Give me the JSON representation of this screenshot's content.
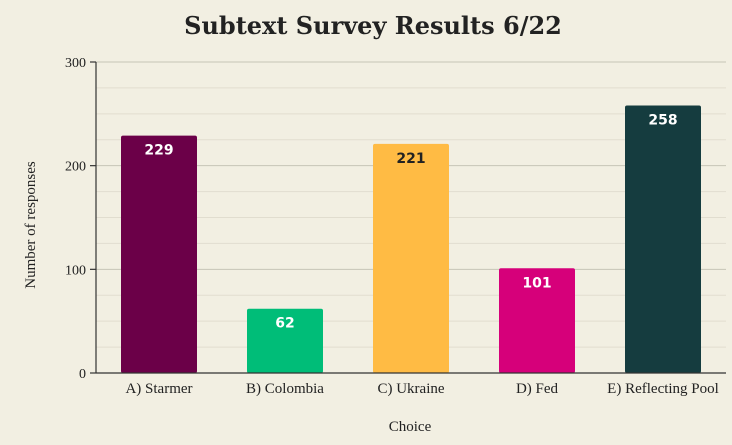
{
  "chart_data": {
    "type": "bar",
    "title": "Subtext Survey Results 6/22",
    "xlabel": "Choice",
    "ylabel": "Number of responses",
    "categories": [
      "A) Starmer",
      "B) Colombia",
      "C) Ukraine",
      "D) Fed",
      "E) Reflecting Pool"
    ],
    "values": [
      229,
      62,
      221,
      101,
      258
    ],
    "data_labels": [
      "229",
      "62",
      "221",
      "101",
      "258"
    ],
    "colors": [
      "#6b0048",
      "#00bd78",
      "#ffbb44",
      "#d6007a",
      "#153c3f"
    ],
    "label_colors": [
      "#ffffff",
      "#ffffff",
      "#222222",
      "#ffffff",
      "#ffffff"
    ],
    "ylim": [
      0,
      300
    ],
    "yticks": [
      0,
      100,
      200,
      300
    ],
    "ytick_labels": [
      "0",
      "100",
      "200",
      "300"
    ],
    "grid": true,
    "legend": "none"
  }
}
